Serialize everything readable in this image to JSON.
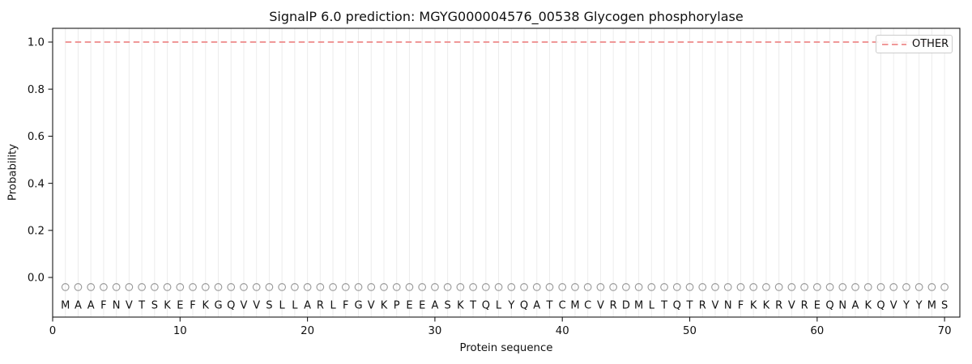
{
  "figure": {
    "title": "SignalP 6.0 prediction: MGYG000004576_00538 Glycogen phosphorylase",
    "xlabel": "Protein sequence",
    "ylabel": "Probability",
    "legend": {
      "position": "upper right",
      "entries": [
        {
          "label": "OTHER",
          "color": "#ee8989",
          "linestyle": "dashed"
        }
      ]
    }
  },
  "chart_data": {
    "type": "line",
    "title": "SignalP 6.0 prediction: MGYG000004576_00538 Glycogen phosphorylase",
    "xlabel": "Protein sequence",
    "ylabel": "Probability",
    "xlim": [
      0,
      71.2
    ],
    "ylim": [
      -0.168,
      1.058
    ],
    "x_ticks": [
      0,
      10,
      20,
      30,
      40,
      50,
      60,
      70
    ],
    "y_ticks": [
      0.0,
      0.2,
      0.4,
      0.6,
      0.8,
      1.0
    ],
    "y_tick_labels": [
      "0.0",
      "0.2",
      "0.4",
      "0.6",
      "0.8",
      "1.0"
    ],
    "grid": {
      "vertical_line_per_residue": true,
      "color": "#ececec"
    },
    "legend_position": "upper right",
    "n_residues": 70,
    "sequence": "MAAFNVTSKEFKGQVVSLLARLFGVKPEEASKTQLYQATCMCVRDMLTQTRVNFKKRVREQNAKQVYYMS",
    "series": [
      {
        "name": "OTHER",
        "style": "dashed",
        "color": "#ee8989",
        "x_start": 1,
        "x_end": 70,
        "constant_y": 1.0
      }
    ],
    "residue_markers": {
      "shape": "open-circle",
      "color": "#999999",
      "y": -0.041,
      "applies_to": "all 70 residues"
    }
  },
  "colors": {
    "other_line": "#ee8989",
    "grid_line": "#ececec",
    "marker_stroke": "#999999",
    "text": "#111111",
    "spine": "#1a1a1a",
    "legend_border": "#cccccc"
  }
}
